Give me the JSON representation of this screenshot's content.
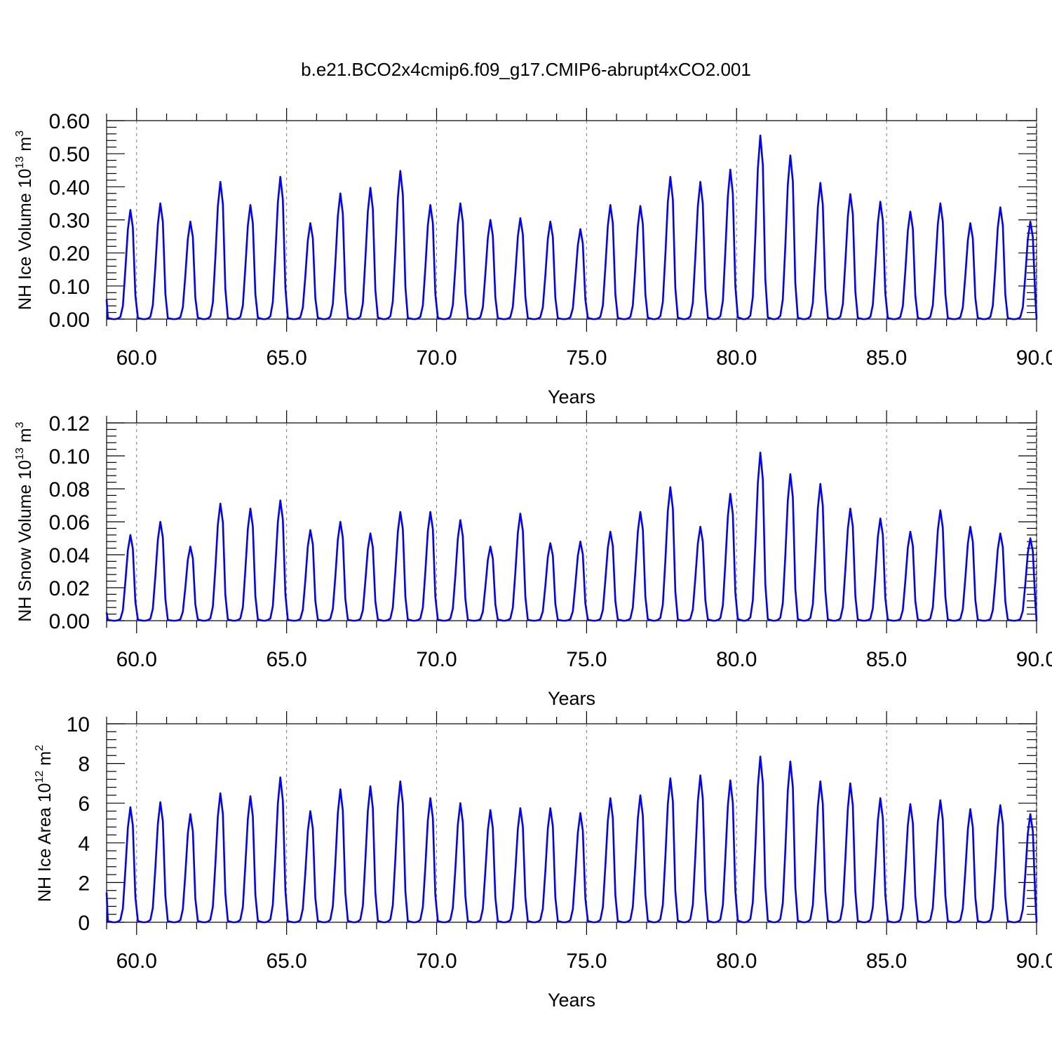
{
  "title": "b.e21.BCO2x4cmip6.f09_g17.CMIP6-abrupt4xCO2.001",
  "colors": {
    "line": "#0000ff",
    "axes": "#000000",
    "grid": "#777777"
  },
  "chart_data": [
    {
      "type": "line",
      "name": "ice-volume",
      "ylabel": {
        "main": "NH Ice Volume 10",
        "sup1": "13",
        "mid": " m",
        "sup2": "3"
      },
      "xlabel": "Years",
      "xlim": [
        59.0,
        90.0
      ],
      "ylim": [
        0.0,
        0.6
      ],
      "yticks": [
        "0.00",
        "0.10",
        "0.20",
        "0.30",
        "0.40",
        "0.50",
        "0.60"
      ],
      "xticks": [
        "60.0",
        "65.0",
        "70.0",
        "75.0",
        "80.0",
        "85.0",
        "90.0"
      ],
      "grid": "vertical dashed at major x ticks",
      "start_value": 0.06,
      "cycle_peaks": [
        0.33,
        0.35,
        0.295,
        0.415,
        0.345,
        0.43,
        0.29,
        0.38,
        0.397,
        0.448,
        0.345,
        0.35,
        0.3,
        0.305,
        0.295,
        0.272,
        0.345,
        0.342,
        0.43,
        0.415,
        0.452,
        0.555,
        0.495,
        0.412,
        0.378,
        0.355,
        0.325,
        0.35,
        0.29,
        0.338,
        0.295
      ]
    },
    {
      "type": "line",
      "name": "snow-volume",
      "ylabel": {
        "main": "NH Snow Volume 10",
        "sup1": "13",
        "mid": " m",
        "sup2": "3"
      },
      "xlabel": "Years",
      "xlim": [
        59.0,
        90.0
      ],
      "ylim": [
        0.0,
        0.12
      ],
      "yticks": [
        "0.00",
        "0.02",
        "0.04",
        "0.06",
        "0.08",
        "0.10",
        "0.12"
      ],
      "xticks": [
        "60.0",
        "65.0",
        "70.0",
        "75.0",
        "80.0",
        "85.0",
        "90.0"
      ],
      "grid": "vertical dashed at major x ticks",
      "start_value": 0.005,
      "cycle_peaks": [
        0.052,
        0.06,
        0.045,
        0.071,
        0.068,
        0.073,
        0.055,
        0.06,
        0.053,
        0.066,
        0.066,
        0.061,
        0.045,
        0.065,
        0.047,
        0.048,
        0.054,
        0.066,
        0.081,
        0.057,
        0.077,
        0.102,
        0.089,
        0.083,
        0.068,
        0.062,
        0.054,
        0.067,
        0.057,
        0.053,
        0.05
      ]
    },
    {
      "type": "line",
      "name": "ice-area",
      "ylabel": {
        "main": "NH Ice Area 10",
        "sup1": "12",
        "mid": " m",
        "sup2": "2"
      },
      "xlabel": "Years",
      "xlim": [
        59.0,
        90.0
      ],
      "ylim": [
        0,
        10
      ],
      "yticks": [
        "0",
        "2",
        "4",
        "6",
        "8",
        "10"
      ],
      "xticks": [
        "60.0",
        "65.0",
        "70.0",
        "75.0",
        "80.0",
        "85.0",
        "90.0"
      ],
      "grid": "vertical dashed at major x ticks",
      "start_value": 1.5,
      "cycle_peaks": [
        5.8,
        6.05,
        5.45,
        6.5,
        6.35,
        7.3,
        5.6,
        6.7,
        6.85,
        7.1,
        6.25,
        6.0,
        5.65,
        5.75,
        5.75,
        5.5,
        6.25,
        6.4,
        7.25,
        7.4,
        7.15,
        8.35,
        8.1,
        7.1,
        7.0,
        6.25,
        5.95,
        6.15,
        5.7,
        5.9,
        5.45
      ]
    }
  ]
}
